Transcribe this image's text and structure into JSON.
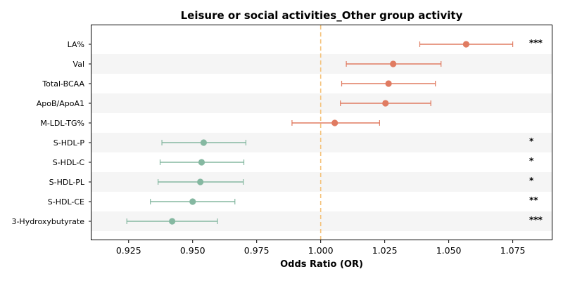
{
  "chart_data": {
    "type": "forest",
    "title": "Leisure or social activities_Other group activity",
    "xlabel": "Odds Ratio (OR)",
    "xlim": [
      0.9105,
      1.0905
    ],
    "xticks": [
      0.925,
      0.95,
      0.975,
      1.0,
      1.025,
      1.05,
      1.075
    ],
    "xtick_labels": [
      "0.925",
      "0.950",
      "0.975",
      "1.000",
      "1.025",
      "1.050",
      "1.075"
    ],
    "reference_line": 1.0,
    "colors": {
      "positive": "#e07b61",
      "negative": "#85b8a1",
      "reference": "#f4c27a",
      "band": "#f5f5f5"
    },
    "rows": [
      {
        "label": "LA%",
        "or": 1.0568,
        "lower": 1.0387,
        "upper": 1.075,
        "sig": "***"
      },
      {
        "label": "Val",
        "or": 1.0283,
        "lower": 1.01,
        "upper": 1.047,
        "sig": ""
      },
      {
        "label": "Total-BCAA",
        "or": 1.0265,
        "lower": 1.0082,
        "upper": 1.0448,
        "sig": ""
      },
      {
        "label": "ApoB/ApoA1",
        "or": 1.0253,
        "lower": 1.0077,
        "upper": 1.043,
        "sig": ""
      },
      {
        "label": "M-LDL-TG%",
        "or": 1.0055,
        "lower": 0.9888,
        "upper": 1.023,
        "sig": ""
      },
      {
        "label": "S-HDL-P",
        "or": 0.9543,
        "lower": 0.938,
        "upper": 0.9708,
        "sig": "*"
      },
      {
        "label": "S-HDL-C",
        "or": 0.9535,
        "lower": 0.9373,
        "upper": 0.97,
        "sig": "*"
      },
      {
        "label": "S-HDL-PL",
        "or": 0.953,
        "lower": 0.9365,
        "upper": 0.9698,
        "sig": "*"
      },
      {
        "label": "S-HDL-CE",
        "or": 0.95,
        "lower": 0.9335,
        "upper": 0.9665,
        "sig": "**"
      },
      {
        "label": "3-Hydroxybutyrate",
        "or": 0.942,
        "lower": 0.9243,
        "upper": 0.9597,
        "sig": "***"
      }
    ]
  }
}
